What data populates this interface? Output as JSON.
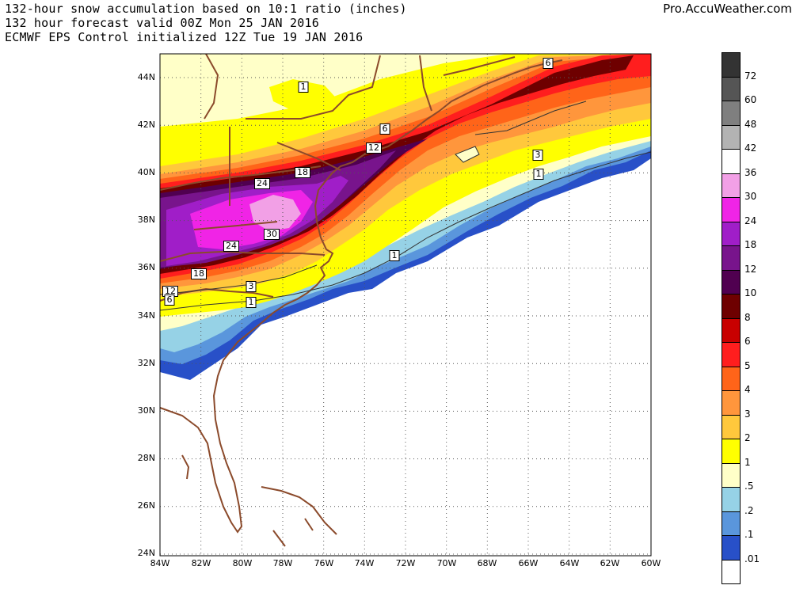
{
  "header": {
    "line1": "132-hour snow accumulation based on 10:1 ratio (inches)",
    "line2": "132 hour forecast valid 00Z Mon 25 JAN 2016",
    "line3": "ECMWF EPS Control initialized 12Z Tue 19 JAN 2016",
    "brand": "Pro.AccuWeather.com"
  },
  "map": {
    "lat_labels": [
      "44N",
      "42N",
      "40N",
      "38N",
      "36N",
      "34N",
      "32N",
      "30N",
      "28N",
      "26N",
      "24N"
    ],
    "lon_labels": [
      "84W",
      "82W",
      "80W",
      "78W",
      "76W",
      "74W",
      "72W",
      "70W",
      "68W",
      "66W",
      "64W",
      "62W",
      "60W"
    ],
    "contour_labels": [
      "1",
      "6",
      "6",
      "12",
      "18",
      "24",
      "30",
      "24",
      "18",
      "12",
      "6",
      "3",
      "1",
      "1",
      "3",
      "1"
    ],
    "land_color": "#8b4a2b"
  },
  "legend": {
    "entries": [
      {
        "label": "72",
        "color": "#333333"
      },
      {
        "label": "60",
        "color": "#555555"
      },
      {
        "label": "48",
        "color": "#7f7f7f"
      },
      {
        "label": "42",
        "color": "#b3b3b3"
      },
      {
        "label": "36",
        "color": "#ffffff"
      },
      {
        "label": "30",
        "color": "#f2a0e6"
      },
      {
        "label": "24",
        "color": "#f024e6"
      },
      {
        "label": "18",
        "color": "#a01ec8"
      },
      {
        "label": "12",
        "color": "#78148c"
      },
      {
        "label": "10",
        "color": "#500050"
      },
      {
        "label": "8",
        "color": "#6e0000"
      },
      {
        "label": "6",
        "color": "#c80000"
      },
      {
        "label": "5",
        "color": "#ff1e1e"
      },
      {
        "label": "4",
        "color": "#ff6419"
      },
      {
        "label": "3",
        "color": "#ff963c"
      },
      {
        "label": "2",
        "color": "#ffc83c"
      },
      {
        "label": "1",
        "color": "#ffff00"
      },
      {
        "label": ".5",
        "color": "#ffffc8"
      },
      {
        "label": ".2",
        "color": "#96d2e6"
      },
      {
        "label": ".1",
        "color": "#5a96dc"
      },
      {
        "label": ".01",
        "color": "#2850c8"
      }
    ],
    "bottom_color": "#ffffff"
  }
}
